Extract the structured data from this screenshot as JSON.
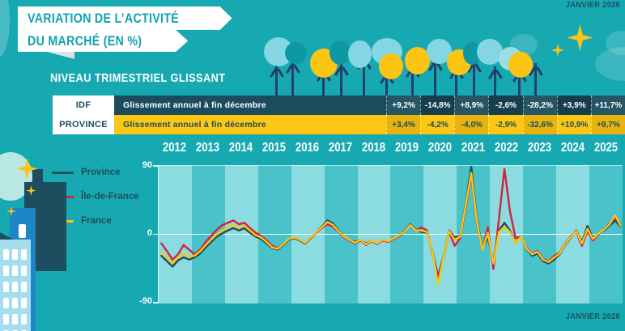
{
  "meta": {
    "date_top": "JANVIER 2026",
    "date_bottom": "JANVIER 2026"
  },
  "header": {
    "title_line1": "VARIATION DE L’ACTIVITÉ",
    "title_line2": "DU MARCHÉ (EN %)",
    "subtitle": "NIVEAU TRIMESTRIEL GLISSANT"
  },
  "table": {
    "rows": [
      {
        "label": "IDF",
        "desc": "Glissement annuel à fin décembre",
        "values": [
          "+9,2%",
          "-14,8%",
          "+8,9%",
          "-2,6%",
          "-28,2%",
          "+3,9%",
          "+11,7%"
        ]
      },
      {
        "label": "PROVINCE",
        "desc": "Glissement annuel à fin décembre",
        "values": [
          "+3,4%",
          "-4,2%",
          "-4,0%",
          "-2,9%",
          "-32,6%",
          "+10,9%",
          "+9,7%"
        ]
      }
    ],
    "value_years": [
      "2019",
      "2020",
      "2021",
      "2022",
      "2023",
      "2024",
      "2025"
    ]
  },
  "chart_data": {
    "type": "line",
    "title": "Variation de l'activité du marché (en %)",
    "ylabel": "",
    "unit": "%",
    "ylim": [
      -90,
      90
    ],
    "yticks": [
      "90",
      "0",
      "-90"
    ],
    "grid": "zero-line",
    "legend_position": "left",
    "years": [
      "2012",
      "2013",
      "2014",
      "2015",
      "2016",
      "2017",
      "2018",
      "2019",
      "2020",
      "2021",
      "2022",
      "2023",
      "2024",
      "2025"
    ],
    "points_per_year": 6,
    "series": [
      {
        "name": "Province",
        "color": "#1E4F5C",
        "values": [
          -28,
          -35,
          -42,
          -34,
          -30,
          -33,
          -30,
          -25,
          -17,
          -10,
          -3,
          1,
          5,
          8,
          5,
          8,
          2,
          -3,
          -6,
          -12,
          -18,
          -20,
          -14,
          -7,
          -5,
          -8,
          -12,
          -5,
          3,
          10,
          18,
          14,
          5,
          -3,
          -7,
          -10,
          -7,
          -12,
          -8,
          -12,
          -7,
          -9,
          -5,
          -1,
          5,
          13,
          6,
          3,
          2,
          -22,
          -55,
          -28,
          5,
          -4,
          -2,
          40,
          88,
          20,
          -18,
          -4,
          -35,
          5,
          15,
          5,
          -12,
          -3,
          -20,
          -28,
          -25,
          -35,
          -38,
          -33,
          -26,
          -14,
          -4,
          5,
          -10,
          11,
          -5,
          1,
          5,
          11,
          18,
          10
        ]
      },
      {
        "name": "Île-de-France",
        "color": "#D5213E",
        "values": [
          -12,
          -22,
          -33,
          -26,
          -14,
          -20,
          -26,
          -20,
          -10,
          -2,
          6,
          12,
          15,
          18,
          13,
          15,
          8,
          2,
          -2,
          -8,
          -15,
          -18,
          -13,
          -6,
          -4,
          -7,
          -11,
          -4,
          2,
          8,
          13,
          10,
          3,
          -4,
          -8,
          -12,
          -8,
          -14,
          -9,
          -13,
          -8,
          -10,
          -6,
          -2,
          4,
          12,
          5,
          9,
          5,
          -25,
          -58,
          -30,
          3,
          -15,
          -5,
          35,
          77,
          15,
          -20,
          9,
          -45,
          20,
          85,
          30,
          -5,
          -3,
          -18,
          -25,
          -22,
          -32,
          -35,
          -28,
          -24,
          -12,
          -2,
          3,
          -15,
          4,
          -8,
          0,
          6,
          14,
          22,
          12
        ]
      },
      {
        "name": "France",
        "color": "#FDC513",
        "values": [
          -24,
          -30,
          -38,
          -30,
          -26,
          -29,
          -28,
          -22,
          -14,
          -7,
          0,
          5,
          9,
          12,
          8,
          11,
          5,
          -1,
          -4,
          -10,
          -17,
          -19,
          -13,
          -6,
          -4,
          -7,
          -11,
          -4,
          3,
          9,
          16,
          12,
          4,
          -3,
          -7,
          -11,
          -7,
          -13,
          -8,
          -12,
          -7,
          -9,
          -5,
          -1,
          4,
          12,
          5,
          5,
          3,
          -23,
          -65,
          -29,
          4,
          -7,
          -3,
          38,
          80,
          17,
          -20,
          2,
          -38,
          3,
          10,
          3,
          -12,
          -3,
          -19,
          -26,
          -23,
          -33,
          -36,
          -30,
          -25,
          -13,
          -3,
          4,
          -12,
          7,
          -6,
          1,
          6,
          13,
          25,
          11
        ]
      }
    ]
  },
  "colors": {
    "background": "#17A9B2",
    "band_light": "#8BDCE1",
    "band_dark": "#49C3C9",
    "table_dark_row": "#1B4C5D",
    "table_yellow_row": "#FDC713",
    "accent_yellow": "#FDC513",
    "accent_red": "#D5213E",
    "dark_slate": "#1D4D5E"
  }
}
